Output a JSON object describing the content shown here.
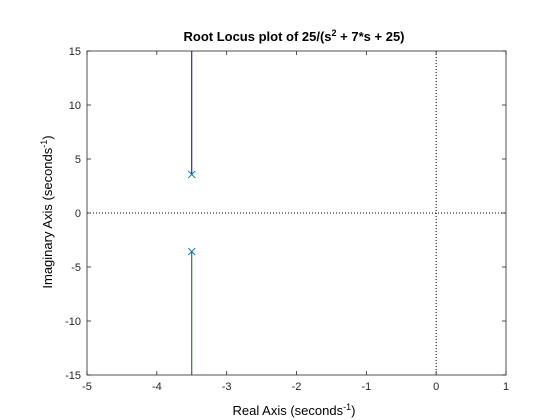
{
  "chart_data": {
    "type": "line",
    "title_parts": [
      "Root Locus plot of 25/(s",
      "2",
      " + 7*s + 25)"
    ],
    "xlabel_parts": [
      "Real Axis (seconds",
      "-1",
      ")"
    ],
    "ylabel_parts": [
      "Imaginary Axis (seconds",
      "-1",
      ")"
    ],
    "xlim": [
      -5,
      1
    ],
    "ylim": [
      -15,
      15
    ],
    "x_ticks": [
      -5,
      -4,
      -3,
      -2,
      -1,
      0,
      1
    ],
    "y_ticks": [
      -15,
      -10,
      -5,
      0,
      5,
      10,
      15
    ],
    "x_tick_labels": [
      "-5",
      "-4",
      "-3",
      "-2",
      "-1",
      "0",
      "1"
    ],
    "y_tick_labels": [
      "-15",
      "-10",
      "-5",
      "0",
      "5",
      "10",
      "15"
    ],
    "grid": false,
    "series": [
      {
        "color": "#00008b",
        "x": [
          -3.5,
          -3.5
        ],
        "y": [
          3.57,
          15
        ]
      },
      {
        "color": "#006400",
        "x": [
          -3.5,
          -3.5
        ],
        "y": [
          -3.57,
          -15
        ]
      }
    ],
    "poles": {
      "color": "#0072bd",
      "marker": "x",
      "points": [
        {
          "x": -3.5,
          "y": 3.57
        },
        {
          "x": -3.5,
          "y": -3.57
        }
      ]
    },
    "reference_lines": [
      {
        "axis": "y",
        "value": 0,
        "style": "dotted"
      },
      {
        "axis": "x",
        "value": 0,
        "style": "dotted"
      }
    ]
  }
}
